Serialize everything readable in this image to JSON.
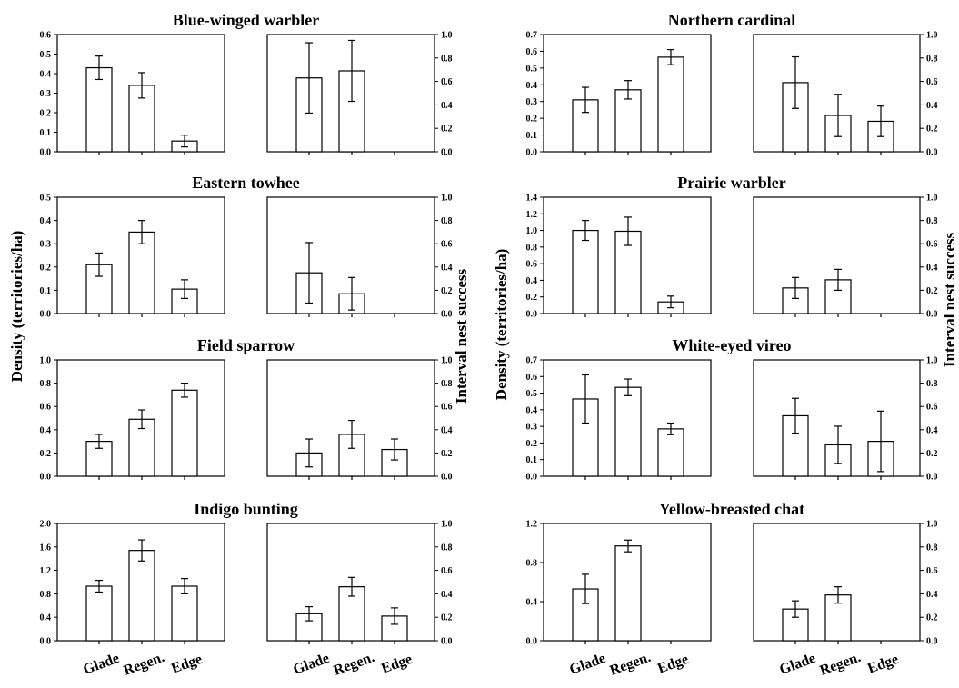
{
  "figure": {
    "left_ylabel": "Density (territories/ha)",
    "right_ylabel": "Interval nest success"
  },
  "chart_data": [
    {
      "type": "bar",
      "title": "Blue-winged warbler",
      "categories": [
        "Glade",
        "Regen.",
        "Edge"
      ],
      "density": {
        "ylim": [
          0,
          0.6
        ],
        "ticks": [
          "0.0",
          "0.1",
          "0.2",
          "0.3",
          "0.4",
          "0.5",
          "0.6"
        ],
        "values": [
          0.43,
          0.34,
          0.055
        ],
        "errors": [
          0.06,
          0.065,
          0.03
        ]
      },
      "nest_success": {
        "ylim": [
          0,
          1
        ],
        "ticks": [
          "0.0",
          "0.2",
          "0.4",
          "0.6",
          "0.8",
          "1.0"
        ],
        "values": [
          0.63,
          0.69,
          null
        ],
        "errors": [
          0.3,
          0.26,
          null
        ]
      }
    },
    {
      "type": "bar",
      "title": "Northern cardinal",
      "categories": [
        "Glade",
        "Regen.",
        "Edge"
      ],
      "density": {
        "ylim": [
          0,
          0.7
        ],
        "ticks": [
          "0.0",
          "0.1",
          "0.2",
          "0.3",
          "0.4",
          "0.5",
          "0.6",
          "0.7"
        ],
        "values": [
          0.31,
          0.37,
          0.565
        ],
        "errors": [
          0.075,
          0.055,
          0.045
        ]
      },
      "nest_success": {
        "ylim": [
          0,
          1
        ],
        "ticks": [
          "0.0",
          "0.2",
          "0.4",
          "0.6",
          "0.8",
          "1.0"
        ],
        "values": [
          0.59,
          0.31,
          0.26
        ],
        "errors": [
          0.22,
          0.18,
          0.13
        ]
      }
    },
    {
      "type": "bar",
      "title": "Eastern towhee",
      "categories": [
        "Glade",
        "Regen.",
        "Edge"
      ],
      "density": {
        "ylim": [
          0,
          0.5
        ],
        "ticks": [
          "0.0",
          "0.1",
          "0.2",
          "0.3",
          "0.4",
          "0.5"
        ],
        "values": [
          0.21,
          0.35,
          0.105
        ],
        "errors": [
          0.05,
          0.05,
          0.04
        ]
      },
      "nest_success": {
        "ylim": [
          0,
          1
        ],
        "ticks": [
          "0.0",
          "0.2",
          "0.4",
          "0.6",
          "0.8",
          "1.0"
        ],
        "values": [
          0.35,
          0.17,
          null
        ],
        "errors": [
          0.26,
          0.14,
          null
        ]
      }
    },
    {
      "type": "bar",
      "title": "Prairie warbler",
      "categories": [
        "Glade",
        "Regen.",
        "Edge"
      ],
      "density": {
        "ylim": [
          0,
          1.4
        ],
        "ticks": [
          "0.0",
          "0.2",
          "0.4",
          "0.6",
          "0.8",
          "1.0",
          "1.2",
          "1.4"
        ],
        "values": [
          1.0,
          0.99,
          0.14
        ],
        "errors": [
          0.12,
          0.17,
          0.07
        ]
      },
      "nest_success": {
        "ylim": [
          0,
          1
        ],
        "ticks": [
          "0.0",
          "0.2",
          "0.4",
          "0.6",
          "0.8",
          "1.0"
        ],
        "values": [
          0.22,
          0.29,
          null
        ],
        "errors": [
          0.09,
          0.09,
          null
        ]
      }
    },
    {
      "type": "bar",
      "title": "Field sparrow",
      "categories": [
        "Glade",
        "Regen.",
        "Edge"
      ],
      "density": {
        "ylim": [
          0,
          1.0
        ],
        "ticks": [
          "0.0",
          "0.2",
          "0.4",
          "0.6",
          "0.8",
          "1.0"
        ],
        "values": [
          0.3,
          0.49,
          0.74
        ],
        "errors": [
          0.06,
          0.08,
          0.06
        ]
      },
      "nest_success": {
        "ylim": [
          0,
          1
        ],
        "ticks": [
          "0.0",
          "0.2",
          "0.4",
          "0.6",
          "0.8",
          "1.0"
        ],
        "values": [
          0.2,
          0.36,
          0.23
        ],
        "errors": [
          0.12,
          0.12,
          0.09
        ]
      }
    },
    {
      "type": "bar",
      "title": "White-eyed vireo",
      "categories": [
        "Glade",
        "Regen.",
        "Edge"
      ],
      "density": {
        "ylim": [
          0,
          0.7
        ],
        "ticks": [
          "0.0",
          "0.1",
          "0.2",
          "0.3",
          "0.4",
          "0.5",
          "0.6",
          "0.7"
        ],
        "values": [
          0.465,
          0.535,
          0.285
        ],
        "errors": [
          0.145,
          0.05,
          0.035
        ]
      },
      "nest_success": {
        "ylim": [
          0,
          1
        ],
        "ticks": [
          "0.0",
          "0.2",
          "0.4",
          "0.6",
          "0.8",
          "1.0"
        ],
        "values": [
          0.52,
          0.27,
          0.3
        ],
        "errors": [
          0.15,
          0.16,
          0.26
        ]
      }
    },
    {
      "type": "bar",
      "title": "Indigo bunting",
      "categories": [
        "Glade",
        "Regen.",
        "Edge"
      ],
      "density": {
        "ylim": [
          0,
          2.0
        ],
        "ticks": [
          "0.0",
          "0.4",
          "0.8",
          "1.2",
          "1.6",
          "2.0"
        ],
        "values": [
          0.93,
          1.54,
          0.93
        ],
        "errors": [
          0.1,
          0.18,
          0.13
        ]
      },
      "nest_success": {
        "ylim": [
          0,
          1
        ],
        "ticks": [
          "0.0",
          "0.2",
          "0.4",
          "0.6",
          "0.8",
          "1.0"
        ],
        "values": [
          0.23,
          0.46,
          0.21
        ],
        "errors": [
          0.06,
          0.08,
          0.07
        ]
      }
    },
    {
      "type": "bar",
      "title": "Yellow-breasted chat",
      "categories": [
        "Glade",
        "Regen.",
        "Edge"
      ],
      "density": {
        "ylim": [
          0,
          1.2
        ],
        "ticks": [
          "0.0",
          "0.4",
          "0.8",
          "1.2"
        ],
        "values": [
          0.53,
          0.97,
          null
        ],
        "errors": [
          0.15,
          0.06,
          null
        ]
      },
      "nest_success": {
        "ylim": [
          0,
          1
        ],
        "ticks": [
          "0.0",
          "0.2",
          "0.4",
          "0.6",
          "0.8",
          "1.0"
        ],
        "values": [
          0.27,
          0.39,
          null
        ],
        "errors": [
          0.07,
          0.07,
          null
        ]
      }
    }
  ]
}
